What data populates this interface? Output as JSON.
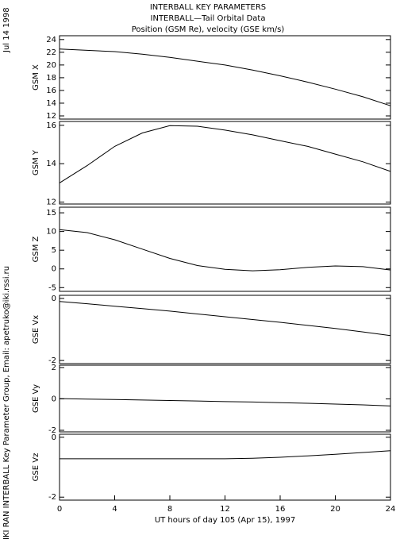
{
  "title_lines": [
    "INTERBALL KEY PARAMETERS",
    "INTERBALL—Tail Orbital Data",
    "Position (GSM Re), velocity (GSE km/s)"
  ],
  "date_stamp": "Jul 14 1998",
  "credit": "IKI RAN INTERBALL Key Parameter Group, Email: apetruko@iki.rssi.ru",
  "chart_data": [
    {
      "type": "line",
      "ylabel": "GSM X",
      "x": [
        0,
        2,
        4,
        6,
        8,
        10,
        12,
        14,
        16,
        18,
        20,
        22,
        24
      ],
      "values": [
        22.5,
        22.3,
        22.1,
        21.7,
        21.2,
        20.6,
        20.0,
        19.2,
        18.3,
        17.3,
        16.2,
        15.0,
        13.6
      ],
      "color": "#000000",
      "xlim": [
        0,
        24
      ],
      "ylim": [
        11.5,
        24.6
      ],
      "yticks": [
        12,
        14,
        16,
        18,
        20,
        22,
        24
      ]
    },
    {
      "type": "line",
      "ylabel": "GSM Y",
      "x": [
        0,
        2,
        4,
        6,
        8,
        10,
        12,
        14,
        16,
        18,
        20,
        22,
        24
      ],
      "values": [
        13.0,
        13.9,
        14.9,
        15.6,
        15.98,
        15.95,
        15.75,
        15.5,
        15.2,
        14.9,
        14.5,
        14.1,
        13.6
      ],
      "color": "#000000",
      "xlim": [
        0,
        24
      ],
      "ylim": [
        11.9,
        16.2
      ],
      "yticks": [
        12,
        14,
        16
      ]
    },
    {
      "type": "line",
      "ylabel": "GSM Z",
      "x": [
        0,
        2,
        4,
        6,
        8,
        10,
        12,
        14,
        16,
        18,
        20,
        22,
        24
      ],
      "values": [
        10.5,
        9.7,
        7.8,
        5.3,
        2.8,
        0.9,
        -0.1,
        -0.5,
        -0.2,
        0.4,
        0.8,
        0.6,
        -0.3
      ],
      "color": "#000000",
      "xlim": [
        0,
        24
      ],
      "ylim": [
        -6,
        16.5
      ],
      "yticks": [
        -5,
        0,
        5,
        10,
        15
      ]
    },
    {
      "type": "line",
      "ylabel": "GSE Vx",
      "x": [
        0,
        2,
        4,
        6,
        8,
        10,
        12,
        14,
        16,
        18,
        20,
        22,
        24
      ],
      "values": [
        -0.1,
        -0.17,
        -0.25,
        -0.33,
        -0.41,
        -0.5,
        -0.59,
        -0.68,
        -0.77,
        -0.87,
        -0.97,
        -1.08,
        -1.2
      ],
      "color": "#000000",
      "xlim": [
        0,
        24
      ],
      "ylim": [
        -2.1,
        0.1
      ],
      "yticks": [
        -2,
        0
      ]
    },
    {
      "type": "line",
      "ylabel": "GSE Vy",
      "x": [
        0,
        2,
        4,
        6,
        8,
        10,
        12,
        14,
        16,
        18,
        20,
        22,
        24
      ],
      "values": [
        0.02,
        -0.01,
        -0.04,
        -0.07,
        -0.1,
        -0.13,
        -0.17,
        -0.2,
        -0.24,
        -0.28,
        -0.33,
        -0.38,
        -0.45
      ],
      "color": "#000000",
      "xlim": [
        0,
        24
      ],
      "ylim": [
        -2.1,
        2.15
      ],
      "yticks": [
        -2,
        0,
        2
      ]
    },
    {
      "type": "line",
      "ylabel": "GSE Vz",
      "x": [
        0,
        2,
        4,
        6,
        8,
        10,
        12,
        14,
        16,
        18,
        20,
        22,
        24
      ],
      "values": [
        -0.72,
        -0.72,
        -0.72,
        -0.72,
        -0.72,
        -0.72,
        -0.72,
        -0.7,
        -0.67,
        -0.62,
        -0.57,
        -0.51,
        -0.45
      ],
      "color": "#000000",
      "xlim": [
        0,
        24
      ],
      "ylim": [
        -2.1,
        0.1
      ],
      "yticks": [
        -2,
        0
      ],
      "xticks": [
        0,
        4,
        8,
        12,
        16,
        20,
        24
      ],
      "xlabel": "UT hours of day 105 (Apr 15), 1997"
    }
  ]
}
